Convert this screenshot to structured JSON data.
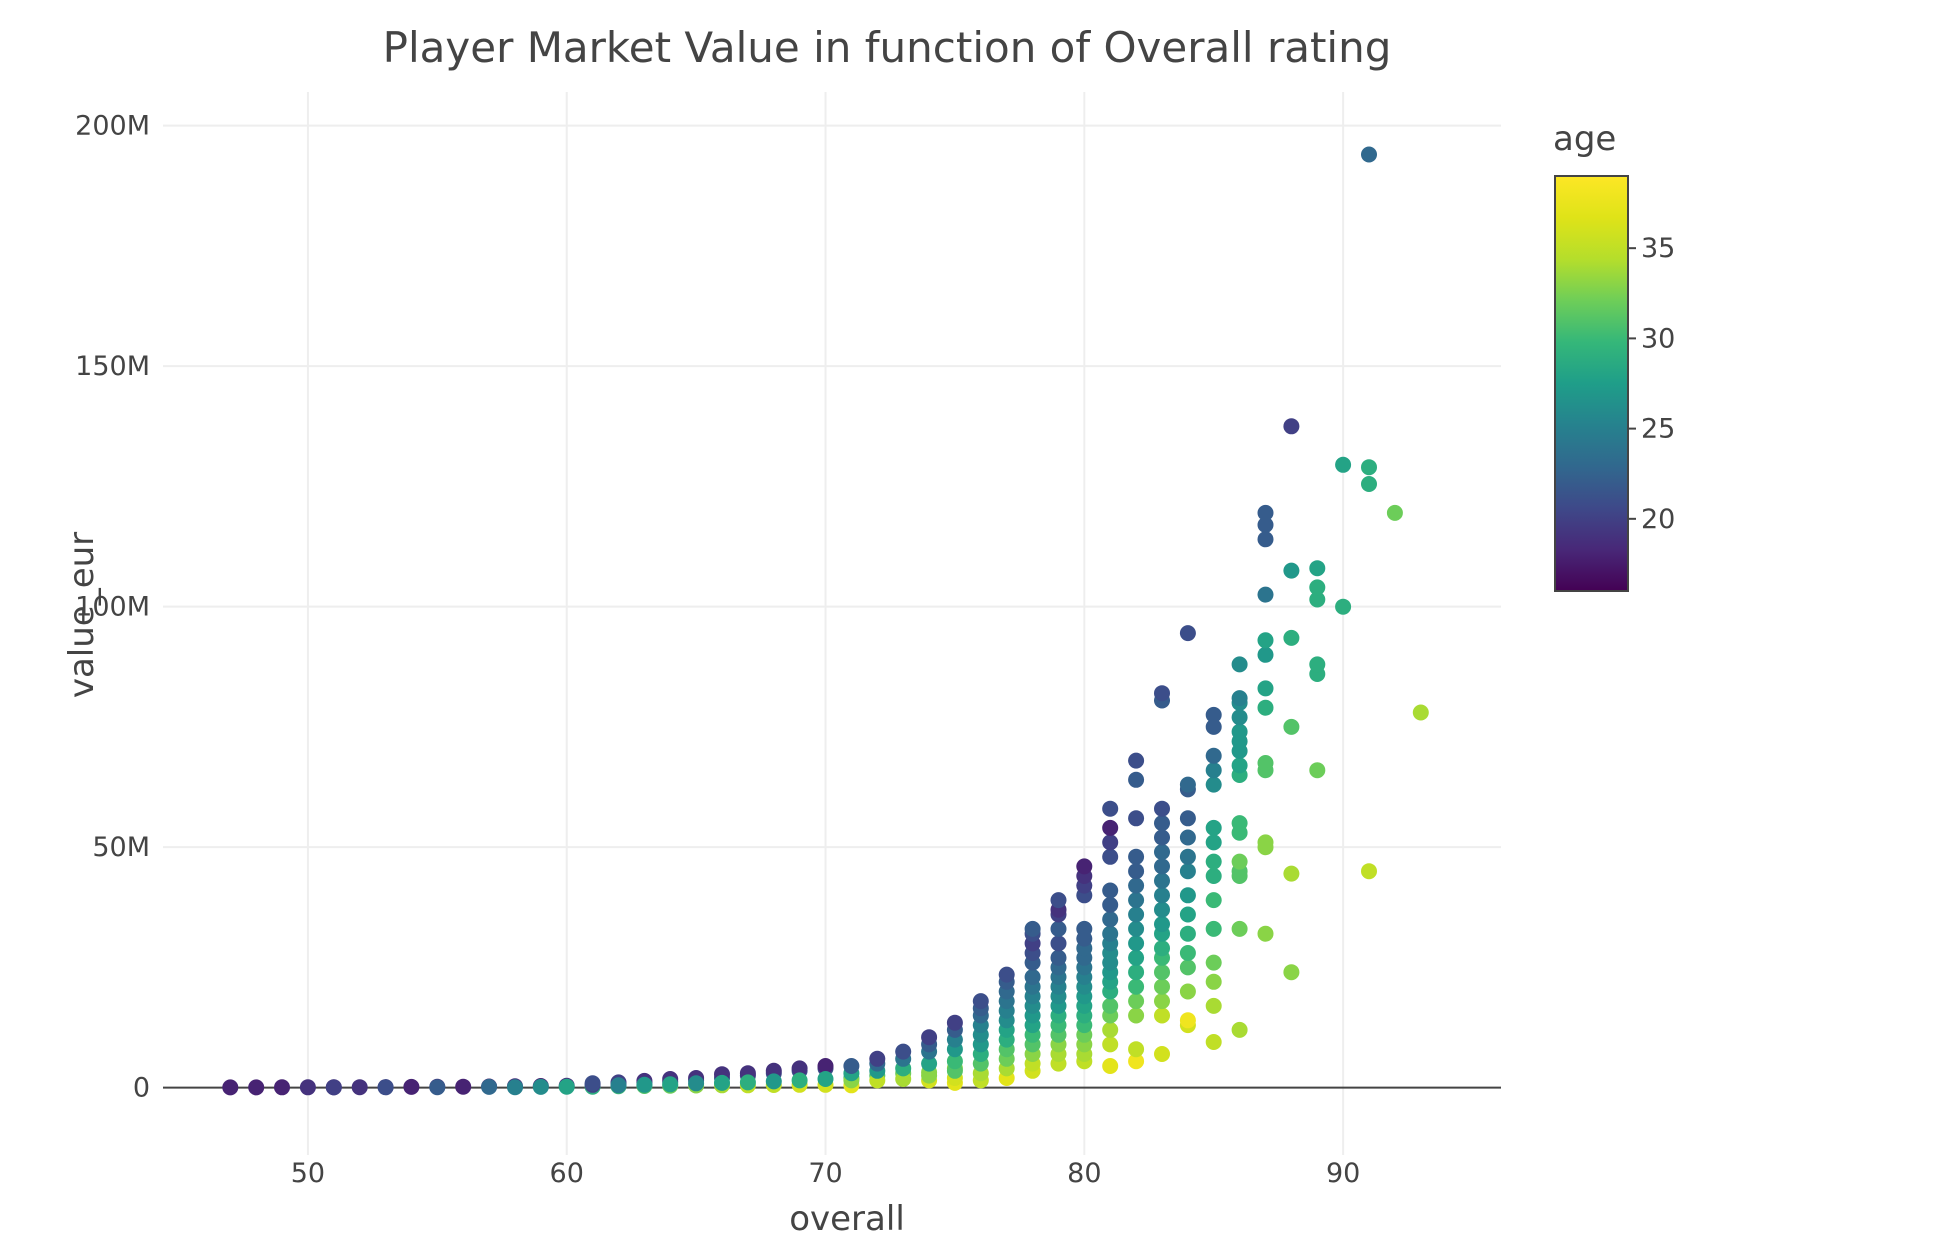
{
  "chart_data": {
    "type": "scatter",
    "title": "Player Market Value in function of Overall rating",
    "xlabel": "overall",
    "ylabel": "value_eur",
    "xlim": [
      44.4,
      96.1
    ],
    "ylim": [
      -14000000,
      207000000
    ],
    "x_ticks": [
      {
        "value": 50,
        "label": "50"
      },
      {
        "value": 60,
        "label": "60"
      },
      {
        "value": 70,
        "label": "70"
      },
      {
        "value": 80,
        "label": "80"
      },
      {
        "value": 90,
        "label": "90"
      }
    ],
    "y_ticks": [
      {
        "value": 0,
        "label": "0"
      },
      {
        "value": 50000000,
        "label": "50M"
      },
      {
        "value": 100000000,
        "label": "100M"
      },
      {
        "value": 150000000,
        "label": "150M"
      },
      {
        "value": 200000000,
        "label": "200M"
      }
    ],
    "grid": true,
    "colorscale": "viridis",
    "color_title": "age",
    "color_range": [
      16,
      39
    ],
    "color_ticks": [
      {
        "value": 20,
        "label": "20"
      },
      {
        "value": 25,
        "label": "25"
      },
      {
        "value": 30,
        "label": "30"
      },
      {
        "value": 35,
        "label": "35"
      }
    ],
    "colorbar_position": "right",
    "points": [
      [
        47,
        0.05,
        18
      ],
      [
        48,
        0.06,
        18
      ],
      [
        49,
        0.07,
        18
      ],
      [
        50,
        0.08,
        19
      ],
      [
        51,
        0.09,
        18
      ],
      [
        52,
        0.1,
        19
      ],
      [
        53,
        0.12,
        19
      ],
      [
        54,
        0.15,
        18
      ],
      [
        55,
        0.18,
        19
      ],
      [
        56,
        0.2,
        18
      ],
      [
        57,
        0.25,
        18
      ],
      [
        58,
        0.3,
        19
      ],
      [
        59,
        0.35,
        18
      ],
      [
        60,
        0.4,
        19
      ],
      [
        51,
        0.05,
        20
      ],
      [
        53,
        0.08,
        21
      ],
      [
        55,
        0.1,
        22
      ],
      [
        57,
        0.15,
        23
      ],
      [
        58,
        0.1,
        25
      ],
      [
        59,
        0.15,
        26
      ],
      [
        60,
        0.2,
        28
      ],
      [
        61,
        0.2,
        29
      ],
      [
        62,
        0.3,
        30
      ],
      [
        63,
        0.35,
        31
      ],
      [
        64,
        0.4,
        32
      ],
      [
        65,
        0.45,
        33
      ],
      [
        66,
        0.5,
        34
      ],
      [
        67,
        0.5,
        35
      ],
      [
        68,
        0.55,
        35
      ],
      [
        69,
        0.6,
        36
      ],
      [
        70,
        0.6,
        36
      ],
      [
        71,
        0.5,
        37
      ],
      [
        61,
        0.6,
        20
      ],
      [
        61,
        0.9,
        21
      ],
      [
        62,
        0.8,
        19
      ],
      [
        62,
        1.1,
        20
      ],
      [
        63,
        1.0,
        21
      ],
      [
        63,
        1.4,
        19
      ],
      [
        64,
        1.2,
        20
      ],
      [
        64,
        1.8,
        19
      ],
      [
        65,
        1.5,
        21
      ],
      [
        65,
        2.0,
        19
      ],
      [
        66,
        2.0,
        22
      ],
      [
        66,
        2.8,
        19
      ],
      [
        67,
        2.5,
        21
      ],
      [
        67,
        3.0,
        19
      ],
      [
        68,
        3.0,
        21
      ],
      [
        68,
        3.5,
        19
      ],
      [
        69,
        3.5,
        21
      ],
      [
        69,
        4.0,
        19
      ],
      [
        70,
        4.0,
        21
      ],
      [
        70,
        4.5,
        18
      ],
      [
        62,
        0.5,
        25
      ],
      [
        63,
        0.6,
        27
      ],
      [
        64,
        0.7,
        28
      ],
      [
        65,
        0.9,
        26
      ],
      [
        66,
        1.0,
        28
      ],
      [
        67,
        1.1,
        29
      ],
      [
        68,
        1.3,
        27
      ],
      [
        69,
        1.5,
        29
      ],
      [
        70,
        1.8,
        28
      ],
      [
        71,
        2.0,
        30
      ],
      [
        72,
        2.5,
        31
      ],
      [
        73,
        3.0,
        32
      ],
      [
        74,
        3.2,
        33
      ],
      [
        75,
        4.0,
        33
      ],
      [
        71,
        1.5,
        33
      ],
      [
        71,
        3.0,
        28
      ],
      [
        71,
        4.5,
        22
      ],
      [
        72,
        1.5,
        35
      ],
      [
        72,
        3.5,
        27
      ],
      [
        72,
        5.0,
        23
      ],
      [
        72,
        6.0,
        20
      ],
      [
        73,
        1.8,
        34
      ],
      [
        73,
        4.0,
        29
      ],
      [
        73,
        6.0,
        24
      ],
      [
        73,
        7.5,
        21
      ],
      [
        74,
        1.5,
        36
      ],
      [
        74,
        2.5,
        33
      ],
      [
        74,
        5.0,
        28
      ],
      [
        74,
        7.5,
        24
      ],
      [
        74,
        9.0,
        22
      ],
      [
        74,
        10.5,
        20
      ],
      [
        75,
        1.0,
        37
      ],
      [
        75,
        2.0,
        36
      ],
      [
        75,
        3.5,
        31
      ],
      [
        75,
        5.5,
        30
      ],
      [
        75,
        8.0,
        27
      ],
      [
        75,
        10.0,
        25
      ],
      [
        75,
        12.0,
        22
      ],
      [
        75,
        13.5,
        20
      ],
      [
        76,
        1.5,
        35
      ],
      [
        76,
        3.0,
        34
      ],
      [
        76,
        5.0,
        31
      ],
      [
        76,
        7.0,
        29
      ],
      [
        76,
        9.0,
        27
      ],
      [
        76,
        11.0,
        26
      ],
      [
        76,
        13.0,
        25
      ],
      [
        76,
        15.0,
        23
      ],
      [
        76,
        16.5,
        22
      ],
      [
        76,
        18.0,
        21
      ],
      [
        77,
        2.0,
        37
      ],
      [
        77,
        4.0,
        34
      ],
      [
        77,
        6.0,
        32
      ],
      [
        77,
        8.0,
        31
      ],
      [
        77,
        10.0,
        29
      ],
      [
        77,
        12.0,
        28
      ],
      [
        77,
        14.0,
        26
      ],
      [
        77,
        16.0,
        25
      ],
      [
        77,
        18.0,
        24
      ],
      [
        77,
        20.0,
        23
      ],
      [
        77,
        22.0,
        22
      ],
      [
        77,
        23.5,
        21
      ],
      [
        78,
        3.5,
        36
      ],
      [
        78,
        5.0,
        35
      ],
      [
        78,
        7.0,
        33
      ],
      [
        78,
        9.0,
        31
      ],
      [
        78,
        11.0,
        30
      ],
      [
        78,
        13.0,
        28
      ],
      [
        78,
        15.0,
        27
      ],
      [
        78,
        17.0,
        26
      ],
      [
        78,
        19.0,
        25
      ],
      [
        78,
        21.0,
        24
      ],
      [
        78,
        23.0,
        23
      ],
      [
        78,
        26.0,
        22
      ],
      [
        78,
        28.0,
        21
      ],
      [
        78,
        30.0,
        20
      ],
      [
        78,
        32.0,
        21
      ],
      [
        78,
        33.0,
        22
      ],
      [
        79,
        5.0,
        35
      ],
      [
        79,
        7.0,
        34
      ],
      [
        79,
        9.0,
        33
      ],
      [
        79,
        11.0,
        31
      ],
      [
        79,
        13.0,
        30
      ],
      [
        79,
        15.0,
        29
      ],
      [
        79,
        17.0,
        27
      ],
      [
        79,
        19.0,
        26
      ],
      [
        79,
        21.0,
        25
      ],
      [
        79,
        23.0,
        24
      ],
      [
        79,
        25.0,
        23
      ],
      [
        79,
        27.0,
        22
      ],
      [
        79,
        30.0,
        21
      ],
      [
        79,
        33.0,
        22
      ],
      [
        79,
        36.0,
        20
      ],
      [
        79,
        37.0,
        19
      ],
      [
        79,
        39.0,
        21
      ],
      [
        80,
        5.5,
        35
      ],
      [
        80,
        7.0,
        34
      ],
      [
        80,
        9.0,
        33
      ],
      [
        80,
        11.0,
        32
      ],
      [
        80,
        13.0,
        30
      ],
      [
        80,
        15.0,
        29
      ],
      [
        80,
        17.0,
        28
      ],
      [
        80,
        19.0,
        27
      ],
      [
        80,
        21.0,
        26
      ],
      [
        80,
        23.0,
        25
      ],
      [
        80,
        25.0,
        24
      ],
      [
        80,
        27.0,
        23
      ],
      [
        80,
        29.0,
        23
      ],
      [
        80,
        31.0,
        22
      ],
      [
        80,
        33.0,
        22
      ],
      [
        80,
        40.0,
        21
      ],
      [
        80,
        42.0,
        20
      ],
      [
        80,
        44.0,
        19
      ],
      [
        80,
        46.0,
        18
      ],
      [
        81,
        4.5,
        37
      ],
      [
        81,
        9.0,
        35
      ],
      [
        81,
        12.0,
        34
      ],
      [
        81,
        15.0,
        32
      ],
      [
        81,
        17.0,
        31
      ],
      [
        81,
        20.0,
        29
      ],
      [
        81,
        22.0,
        28
      ],
      [
        81,
        24.0,
        27
      ],
      [
        81,
        26.0,
        26
      ],
      [
        81,
        28.0,
        26
      ],
      [
        81,
        30.0,
        25
      ],
      [
        81,
        32.0,
        24
      ],
      [
        81,
        35.0,
        23
      ],
      [
        81,
        38.0,
        22
      ],
      [
        81,
        41.0,
        22
      ],
      [
        81,
        48.0,
        21
      ],
      [
        81,
        51.0,
        20
      ],
      [
        81,
        54.0,
        18
      ],
      [
        81,
        58.0,
        21
      ],
      [
        82,
        5.5,
        38
      ],
      [
        82,
        8.0,
        35
      ],
      [
        82,
        15.0,
        33
      ],
      [
        82,
        18.0,
        32
      ],
      [
        82,
        21.0,
        30
      ],
      [
        82,
        24.0,
        29
      ],
      [
        82,
        27.0,
        28
      ],
      [
        82,
        30.0,
        27
      ],
      [
        82,
        33.0,
        26
      ],
      [
        82,
        36.0,
        25
      ],
      [
        82,
        39.0,
        24
      ],
      [
        82,
        42.0,
        23
      ],
      [
        82,
        45.0,
        22
      ],
      [
        82,
        48.0,
        22
      ],
      [
        82,
        56.0,
        21
      ],
      [
        82,
        64.0,
        22
      ],
      [
        82,
        68.0,
        21
      ],
      [
        83,
        7.0,
        36
      ],
      [
        83,
        15.0,
        35
      ],
      [
        83,
        18.0,
        33
      ],
      [
        83,
        21.0,
        32
      ],
      [
        83,
        24.0,
        31
      ],
      [
        83,
        27.0,
        30
      ],
      [
        83,
        29.0,
        29
      ],
      [
        83,
        32.0,
        28
      ],
      [
        83,
        34.0,
        27
      ],
      [
        83,
        37.0,
        26
      ],
      [
        83,
        40.0,
        25
      ],
      [
        83,
        43.0,
        24
      ],
      [
        83,
        46.0,
        23
      ],
      [
        83,
        49.0,
        23
      ],
      [
        83,
        52.0,
        22
      ],
      [
        83,
        55.0,
        22
      ],
      [
        83,
        58.0,
        21
      ],
      [
        83,
        80.5,
        22
      ],
      [
        83,
        82.0,
        21
      ],
      [
        84,
        13.0,
        36
      ],
      [
        84,
        14.0,
        38
      ],
      [
        84,
        20.0,
        33
      ],
      [
        84,
        25.0,
        31
      ],
      [
        84,
        28.0,
        30
      ],
      [
        84,
        32.0,
        29
      ],
      [
        84,
        36.0,
        28
      ],
      [
        84,
        40.0,
        27
      ],
      [
        84,
        45.0,
        25
      ],
      [
        84,
        48.0,
        24
      ],
      [
        84,
        52.0,
        23
      ],
      [
        84,
        56.0,
        22
      ],
      [
        84,
        62.0,
        22
      ],
      [
        84,
        63.0,
        23
      ],
      [
        84,
        94.5,
        21
      ],
      [
        85,
        9.5,
        35
      ],
      [
        85,
        17.0,
        34
      ],
      [
        85,
        22.0,
        33
      ],
      [
        85,
        26.0,
        32
      ],
      [
        85,
        33.0,
        30
      ],
      [
        85,
        39.0,
        30
      ],
      [
        85,
        44.0,
        29
      ],
      [
        85,
        47.0,
        29
      ],
      [
        85,
        51.0,
        28
      ],
      [
        85,
        54.0,
        28
      ],
      [
        85,
        63.0,
        26
      ],
      [
        85,
        66.0,
        25
      ],
      [
        85,
        69.0,
        23
      ],
      [
        85,
        75.0,
        22
      ],
      [
        85,
        77.5,
        22
      ],
      [
        86,
        12.0,
        34
      ],
      [
        86,
        33.0,
        32
      ],
      [
        86,
        44.0,
        31
      ],
      [
        86,
        45.0,
        31
      ],
      [
        86,
        47.0,
        32
      ],
      [
        86,
        53.0,
        30
      ],
      [
        86,
        55.0,
        30
      ],
      [
        86,
        65.0,
        29
      ],
      [
        86,
        67.0,
        28
      ],
      [
        86,
        70.0,
        27
      ],
      [
        86,
        72.0,
        27
      ],
      [
        86,
        74.0,
        27
      ],
      [
        86,
        77.0,
        26
      ],
      [
        86,
        80.0,
        26
      ],
      [
        86,
        81.0,
        25
      ],
      [
        86,
        88.0,
        26
      ],
      [
        87,
        32.0,
        33
      ],
      [
        87,
        50.0,
        33
      ],
      [
        87,
        51.0,
        33
      ],
      [
        87,
        66.0,
        31
      ],
      [
        87,
        67.5,
        31
      ],
      [
        87,
        79.0,
        29
      ],
      [
        87,
        83.0,
        28
      ],
      [
        87,
        90.0,
        27
      ],
      [
        87,
        93.0,
        28
      ],
      [
        87,
        102.5,
        24
      ],
      [
        87,
        114.0,
        22
      ],
      [
        87,
        117.0,
        22
      ],
      [
        87,
        119.5,
        22
      ],
      [
        88,
        24.0,
        33
      ],
      [
        88,
        44.5,
        34
      ],
      [
        88,
        75.0,
        31
      ],
      [
        88,
        93.5,
        29
      ],
      [
        88,
        107.5,
        27
      ],
      [
        88,
        137.5,
        20
      ],
      [
        89,
        66.0,
        32
      ],
      [
        89,
        86.0,
        29
      ],
      [
        89,
        88.0,
        29
      ],
      [
        89,
        101.5,
        29
      ],
      [
        89,
        104.0,
        29
      ],
      [
        89,
        108.0,
        28
      ],
      [
        90,
        100.0,
        29
      ],
      [
        90,
        129.5,
        28
      ],
      [
        91,
        45.0,
        35
      ],
      [
        91,
        125.5,
        29
      ],
      [
        91,
        129.0,
        29
      ],
      [
        91,
        194.0,
        23
      ],
      [
        92,
        119.5,
        32
      ],
      [
        93,
        78.0,
        34
      ]
    ]
  }
}
